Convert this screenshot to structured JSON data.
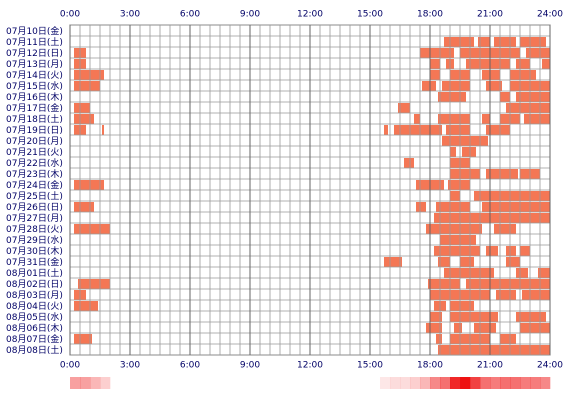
{
  "chart_data": {
    "type": "timeline",
    "xlim": [
      0,
      24
    ],
    "xticks": [
      {
        "value": 0,
        "label": "0:00"
      },
      {
        "value": 3,
        "label": "3:00"
      },
      {
        "value": 6,
        "label": "6:00"
      },
      {
        "value": 9,
        "label": "9:00"
      },
      {
        "value": 12,
        "label": "12:00"
      },
      {
        "value": 15,
        "label": "15:00"
      },
      {
        "value": 18,
        "label": "18:00"
      },
      {
        "value": 21,
        "label": "21:00"
      },
      {
        "value": 24,
        "label": "24:00"
      }
    ],
    "grid": true,
    "grid_step": 0.5,
    "color": "#f47755",
    "density_color": "#ee1111",
    "rows": [
      {
        "label": "07月10日(金)",
        "segments": []
      },
      {
        "label": "07月11日(土)",
        "segments": [
          [
            18.7,
            20.2
          ],
          [
            20.4,
            21.0
          ],
          [
            21.2,
            22.3
          ],
          [
            22.5,
            23.8
          ]
        ]
      },
      {
        "label": "07月12日(日)",
        "segments": [
          [
            0.2,
            0.8
          ],
          [
            17.5,
            19.2
          ],
          [
            19.5,
            22.5
          ],
          [
            22.8,
            24
          ]
        ]
      },
      {
        "label": "07月13日(月)",
        "segments": [
          [
            0.2,
            0.8
          ],
          [
            18,
            18.5
          ],
          [
            18.8,
            19.2
          ],
          [
            19.8,
            22
          ],
          [
            22.3,
            23
          ],
          [
            23.6,
            24
          ]
        ]
      },
      {
        "label": "07月14日(火)",
        "segments": [
          [
            0.2,
            1.7
          ],
          [
            18,
            18.5
          ],
          [
            19,
            20
          ],
          [
            20.6,
            21.5
          ],
          [
            22,
            23.3
          ]
        ]
      },
      {
        "label": "07月15日(水)",
        "segments": [
          [
            0.2,
            1.5
          ],
          [
            17.6,
            18.3
          ],
          [
            18.6,
            20
          ],
          [
            20.8,
            21.6
          ],
          [
            22,
            24
          ]
        ]
      },
      {
        "label": "07月16日(木)",
        "segments": [
          [
            18.4,
            19.8
          ],
          [
            21.5,
            22
          ],
          [
            22.3,
            24
          ]
        ]
      },
      {
        "label": "07月17日(金)",
        "segments": [
          [
            0.2,
            1.0
          ],
          [
            16.4,
            17
          ],
          [
            21.8,
            24
          ]
        ]
      },
      {
        "label": "07月18日(土)",
        "segments": [
          [
            0.2,
            1.2
          ],
          [
            17.2,
            17.5
          ],
          [
            18.4,
            20
          ],
          [
            20.6,
            21
          ],
          [
            21.5,
            22.5
          ],
          [
            22.7,
            24
          ]
        ]
      },
      {
        "label": "07月19日(日)",
        "segments": [
          [
            0.2,
            0.8
          ],
          [
            1.6,
            1.7
          ],
          [
            15.7,
            15.9
          ],
          [
            16.2,
            18.6
          ],
          [
            18.8,
            20
          ],
          [
            20.8,
            22
          ]
        ]
      },
      {
        "label": "07月20日(月)",
        "segments": [
          [
            18.6,
            20.9
          ]
        ]
      },
      {
        "label": "07月21日(火)",
        "segments": [
          [
            19,
            19.3
          ],
          [
            19.6,
            20.3
          ]
        ]
      },
      {
        "label": "07月22日(水)",
        "segments": [
          [
            16.7,
            17.2
          ],
          [
            19,
            20
          ]
        ]
      },
      {
        "label": "07月23日(木)",
        "segments": [
          [
            19,
            20.5
          ],
          [
            20.8,
            22.4
          ],
          [
            22.5,
            23.5
          ]
        ]
      },
      {
        "label": "07月24日(金)",
        "segments": [
          [
            0.2,
            1.7
          ],
          [
            17.3,
            18.7
          ],
          [
            18.9,
            20
          ]
        ]
      },
      {
        "label": "07月25日(土)",
        "segments": [
          [
            19,
            19.5
          ],
          [
            20.2,
            24
          ]
        ]
      },
      {
        "label": "07月26日(日)",
        "segments": [
          [
            0.2,
            1.2
          ],
          [
            17.3,
            17.8
          ],
          [
            18.3,
            20
          ],
          [
            20.6,
            24
          ]
        ]
      },
      {
        "label": "07月27日(月)",
        "segments": [
          [
            18.2,
            24
          ]
        ]
      },
      {
        "label": "07月28日(火)",
        "segments": [
          [
            0.2,
            2.0
          ],
          [
            17.8,
            20.6
          ],
          [
            21.2,
            22.3
          ]
        ]
      },
      {
        "label": "07月29日(水)",
        "segments": [
          [
            18.5,
            20.3
          ]
        ]
      },
      {
        "label": "07月30日(木)",
        "segments": [
          [
            18.2,
            20.5
          ],
          [
            20.8,
            21.4
          ],
          [
            21.8,
            22.3
          ],
          [
            22.5,
            23
          ]
        ]
      },
      {
        "label": "07月31日(金)",
        "segments": [
          [
            15.7,
            16.6
          ],
          [
            18.4,
            19
          ],
          [
            19.5,
            20.2
          ],
          [
            21.8,
            22.5
          ]
        ]
      },
      {
        "label": "08月01日(土)",
        "segments": [
          [
            18.7,
            21.2
          ],
          [
            22.3,
            22.9
          ],
          [
            23.4,
            24
          ]
        ]
      },
      {
        "label": "08月02日(日)",
        "segments": [
          [
            0.4,
            2.0
          ],
          [
            17.9,
            19.5
          ],
          [
            19.8,
            24
          ]
        ]
      },
      {
        "label": "08月03日(月)",
        "segments": [
          [
            0.2,
            0.8
          ],
          [
            18,
            21
          ],
          [
            21.3,
            22.3
          ],
          [
            22.6,
            24
          ]
        ]
      },
      {
        "label": "08月04日(火)",
        "segments": [
          [
            0.2,
            1.4
          ],
          [
            18.2,
            18.8
          ],
          [
            19,
            20.2
          ]
        ]
      },
      {
        "label": "08月05日(水)",
        "segments": [
          [
            18,
            18.6
          ],
          [
            19,
            21.4
          ],
          [
            22.3,
            23.8
          ]
        ]
      },
      {
        "label": "08月06日(木)",
        "segments": [
          [
            17.8,
            18.6
          ],
          [
            19.2,
            19.6
          ],
          [
            20.2,
            21.3
          ],
          [
            22.5,
            24
          ]
        ]
      },
      {
        "label": "08月07日(金)",
        "segments": [
          [
            0.2,
            1.1
          ],
          [
            18.3,
            18.6
          ],
          [
            19,
            21
          ],
          [
            21.5,
            22.3
          ]
        ]
      },
      {
        "label": "08月08日(土)",
        "segments": [
          [
            18.4,
            24
          ]
        ]
      }
    ],
    "density": [
      0.4,
      0.4,
      0.3,
      0.2,
      0,
      0,
      0,
      0,
      0,
      0,
      0,
      0,
      0,
      0,
      0,
      0,
      0,
      0,
      0,
      0,
      0,
      0,
      0,
      0,
      0,
      0,
      0,
      0,
      0,
      0,
      0,
      0.1,
      0.15,
      0.15,
      0.2,
      0.3,
      0.5,
      0.6,
      0.9,
      1,
      0.8,
      0.6,
      0.55,
      0.6,
      0.6,
      0.55,
      0.55,
      0.5
    ]
  }
}
